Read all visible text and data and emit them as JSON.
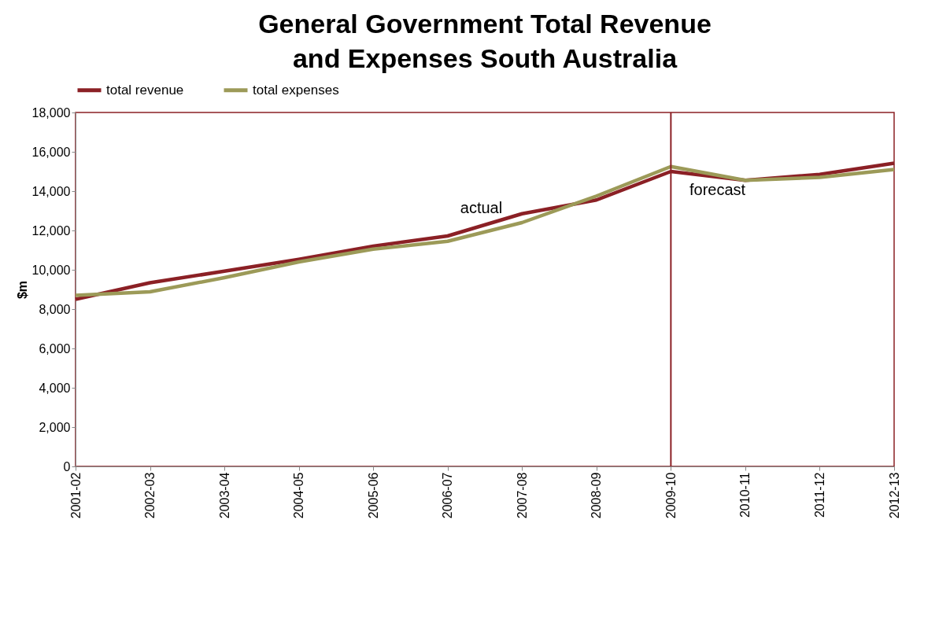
{
  "chart_data": {
    "type": "line",
    "title": "General Government Total Revenue and Expenses South Australia",
    "ylabel": "$m",
    "categories": [
      "2001-02",
      "2002-03",
      "2003-04",
      "2004-05",
      "2005-06",
      "2006-07",
      "2007-08",
      "2008-09",
      "2009-10",
      "2010-11",
      "2011-12",
      "2012-13"
    ],
    "series": [
      {
        "name": "total revenue",
        "color": "#8b2025",
        "values": [
          8500,
          9340,
          9930,
          10530,
          11200,
          11720,
          12850,
          13550,
          15000,
          14550,
          14850,
          15420
        ]
      },
      {
        "name": "total expenses",
        "color": "#9c9a58",
        "values": [
          8700,
          8880,
          9600,
          10400,
          11050,
          11450,
          12400,
          13750,
          15250,
          14550,
          14700,
          15100
        ]
      }
    ],
    "ylim": [
      0,
      18000
    ],
    "yticks": [
      0,
      {
        "value": 2000,
        "label": "2,000"
      },
      {
        "value": 4000,
        "label": "4,000"
      },
      {
        "value": 6000,
        "label": "6,000"
      },
      {
        "value": 8000,
        "label": "8,000"
      },
      {
        "value": 10000,
        "label": "10,000"
      },
      {
        "value": 12000,
        "label": "12,000"
      },
      {
        "value": 14000,
        "label": "14,000"
      },
      {
        "value": 16000,
        "label": "16,000"
      },
      {
        "value": 18000,
        "label": "18,000"
      }
    ],
    "ref_lines": [
      {
        "axis": "x",
        "value": "2009-10",
        "color": "#8b2025"
      }
    ],
    "annotations": [
      "actual",
      "forecast"
    ],
    "legend": "top",
    "grid": false,
    "marker": "none",
    "line_style": "solid"
  }
}
